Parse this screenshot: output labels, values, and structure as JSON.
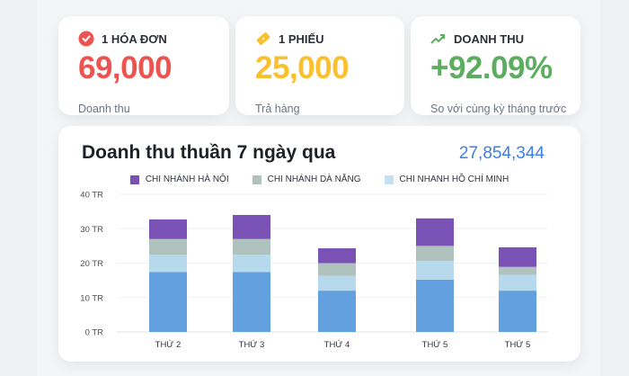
{
  "stats": [
    {
      "icon": "check-circle-icon",
      "heading": "1 HÓA ĐƠN",
      "value": "69,000",
      "caption": "Doanh thu",
      "color": "#ef5350"
    },
    {
      "icon": "ticket-icon",
      "heading": "1 PHIẾU",
      "value": "25,000",
      "caption": "Trả hàng",
      "color": "#fbc02d"
    },
    {
      "icon": "trend-up-icon",
      "heading": "DOANH THU",
      "value": "+92.09%",
      "caption": "So với cùng kỳ tháng trước",
      "color": "#5cad5f"
    }
  ],
  "panel": {
    "title": "Doanh thu thuần 7 ngày qua",
    "total": "27,854,344"
  },
  "chart_data": {
    "type": "bar",
    "stacked": true,
    "title": "Doanh thu thuần 7 ngày qua",
    "categories": [
      "THỨ 2",
      "THỨ 3",
      "THỨ 4",
      "THỨ 5",
      "THỨ 5"
    ],
    "ylim": [
      0,
      40
    ],
    "yticks": [
      "0 TR",
      "10 TR",
      "20 TR",
      "30 TR",
      "40 TR"
    ],
    "ytick_values": [
      0,
      10,
      20,
      30,
      40
    ],
    "grid": true,
    "legend_position": "top-center",
    "legend": [
      "CHI NHÁNH HÀ NỘI",
      "CHI NHÁNH DÀ NẴNG",
      "CHI NHANH HỒ CHÍ MINH"
    ],
    "series": [
      {
        "name": "",
        "color": "#63a0df",
        "values": [
          17.4,
          17.4,
          12.0,
          15.2,
          12.0
        ]
      },
      {
        "name": "CHI NHANH HỒ CHÍ MINH",
        "color": "#b7d9ec",
        "values": [
          5.0,
          5.0,
          4.3,
          5.4,
          4.6
        ]
      },
      {
        "name": "CHI NHÁNH DÀ NẴNG",
        "color": "#b0c2be",
        "values": [
          4.6,
          4.6,
          3.7,
          4.4,
          2.3
        ]
      },
      {
        "name": "CHI NHÁNH HÀ NỘI",
        "color": "#7a52b5",
        "values": [
          5.7,
          7.0,
          4.3,
          8.0,
          5.7
        ]
      }
    ]
  }
}
